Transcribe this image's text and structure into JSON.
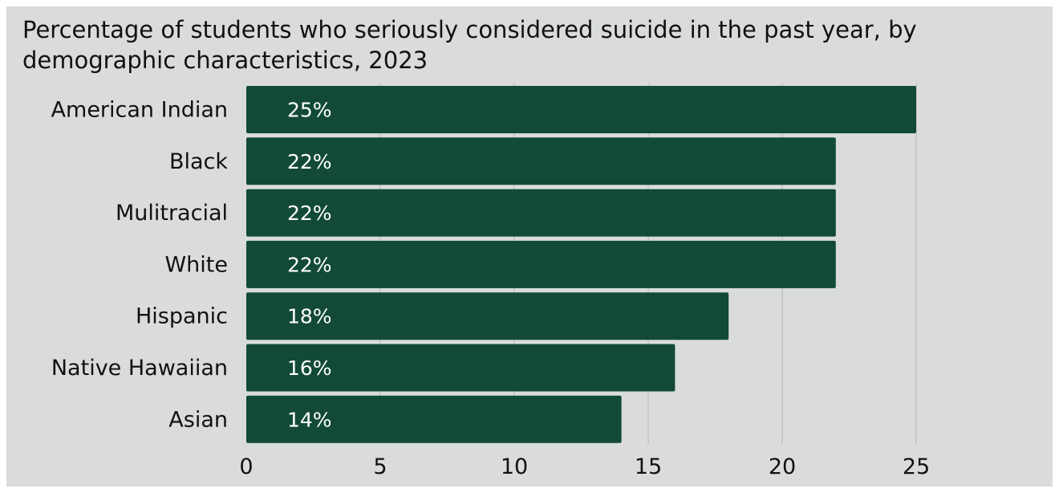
{
  "chart_data": {
    "type": "bar",
    "orientation": "horizontal",
    "title": "Percentage of students who seriously considered suicide in the past year, by demographic characteristics, 2023",
    "categories": [
      "American Indian",
      "Black",
      "Mulitracial",
      "White",
      "Hispanic",
      "Native Hawaiian",
      "Asian"
    ],
    "values": [
      25,
      22,
      22,
      22,
      18,
      16,
      14
    ],
    "data_labels": [
      "25%",
      "22%",
      "22%",
      "22%",
      "18%",
      "16%",
      "14%"
    ],
    "xlim": [
      0,
      25
    ],
    "xticks": [
      0,
      5,
      10,
      15,
      20,
      25
    ],
    "xtick_labels": [
      "0",
      "5",
      "10",
      "15",
      "20",
      "25"
    ],
    "grid": "vertical",
    "bar_color": "#124a37",
    "background_color": "#d9dcdb",
    "grid_color": "#b3b6b5"
  }
}
